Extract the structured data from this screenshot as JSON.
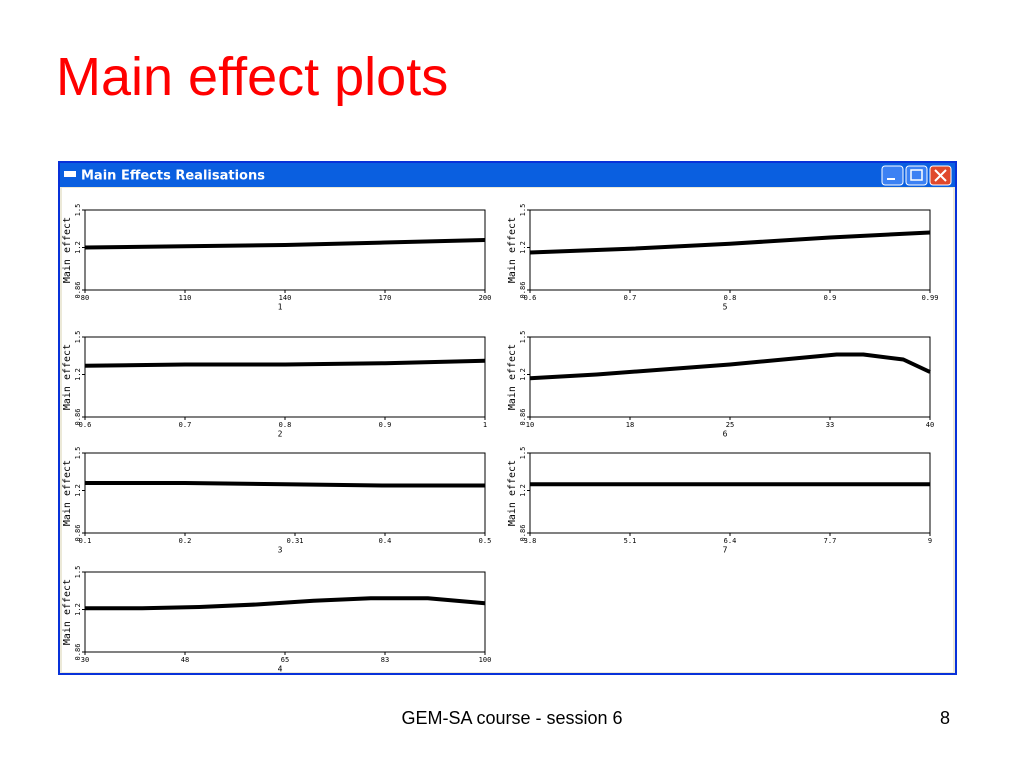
{
  "title": "Main effect plots",
  "window_title": "Main Effects Realisations",
  "footer": "GEM-SA course - session 6",
  "page_number": "8",
  "chart_data": [
    {
      "type": "line",
      "x_label": "1",
      "y_label": "Main effect",
      "color": "#000000",
      "xlim": [
        80,
        200
      ],
      "xticks": [
        80,
        110,
        140,
        170,
        200
      ],
      "ylim": [
        0.86,
        1.5
      ],
      "yticks": [
        0.86,
        1.2,
        1.5
      ],
      "x": [
        80,
        110,
        140,
        170,
        200
      ],
      "values": [
        1.2,
        1.21,
        1.22,
        1.24,
        1.26
      ]
    },
    {
      "type": "line",
      "x_label": "5",
      "y_label": "Main effect",
      "color": "#000000",
      "xlim": [
        0.6,
        0.99
      ],
      "xticks": [
        0.6,
        {
          "value": 0.6975,
          "label": "0.7"
        },
        {
          "value": 0.795,
          "label": "0.8"
        },
        {
          "value": 0.8925,
          "label": "0.9"
        },
        0.99
      ],
      "ylim": [
        0.86,
        1.5
      ],
      "yticks": [
        0.86,
        1.2,
        1.5
      ],
      "x": [
        0.6,
        0.6975,
        0.795,
        0.8925,
        0.99
      ],
      "values": [
        1.16,
        1.19,
        1.23,
        1.28,
        1.32
      ]
    },
    {
      "type": "line",
      "x_label": "2",
      "y_label": "Main effect",
      "color": "#000000",
      "xlim": [
        0.6,
        1
      ],
      "xticks": [
        0.6,
        0.7,
        0.8,
        0.9,
        1
      ],
      "ylim": [
        0.86,
        1.5
      ],
      "yticks": [
        0.86,
        1.2,
        1.5
      ],
      "x": [
        0.6,
        0.7,
        0.8,
        0.9,
        1
      ],
      "values": [
        1.27,
        1.28,
        1.28,
        1.29,
        1.31
      ]
    },
    {
      "type": "line",
      "x_label": "6",
      "y_label": "Main effect",
      "color": "#000000",
      "xlim": [
        10,
        40
      ],
      "xticks": [
        10,
        {
          "value": 17.5,
          "label": "18"
        },
        25,
        {
          "value": 32.5,
          "label": "33"
        },
        40
      ],
      "ylim": [
        0.86,
        1.5
      ],
      "yticks": [
        0.86,
        1.2,
        1.5
      ],
      "x": [
        10,
        15,
        20,
        25,
        30,
        33,
        35,
        38,
        40
      ],
      "values": [
        1.17,
        1.2,
        1.24,
        1.28,
        1.33,
        1.36,
        1.36,
        1.32,
        1.22
      ]
    },
    {
      "type": "line",
      "x_label": "3",
      "y_label": "Main effect",
      "color": "#000000",
      "xlim": [
        0.1,
        0.5
      ],
      "xticks": [
        0.1,
        0.2,
        0.31,
        0.4,
        0.5
      ],
      "ylim": [
        0.86,
        1.5
      ],
      "yticks": [
        0.86,
        1.2,
        1.5
      ],
      "x": [
        0.1,
        0.2,
        0.3,
        0.4,
        0.5
      ],
      "values": [
        1.26,
        1.26,
        1.25,
        1.24,
        1.24
      ]
    },
    {
      "type": "line",
      "x_label": "7",
      "y_label": "Main effect",
      "color": "#000000",
      "xlim": [
        3.8,
        9
      ],
      "xticks": [
        3.8,
        5.1,
        6.4,
        7.7,
        9
      ],
      "ylim": [
        0.86,
        1.5
      ],
      "yticks": [
        0.86,
        1.2,
        1.5
      ],
      "x": [
        3.8,
        5.1,
        6.4,
        7.7,
        9
      ],
      "values": [
        1.25,
        1.25,
        1.25,
        1.25,
        1.25
      ]
    },
    {
      "type": "line",
      "x_label": "4",
      "y_label": "Main effect",
      "color": "#000000",
      "xlim": [
        30,
        100
      ],
      "xticks": [
        30,
        {
          "value": 47.5,
          "label": "48"
        },
        65,
        {
          "value": 82.5,
          "label": "83"
        },
        100
      ],
      "ylim": [
        0.86,
        1.5
      ],
      "yticks": [
        0.86,
        1.2,
        1.5
      ],
      "x": [
        30,
        40,
        50,
        60,
        70,
        80,
        90,
        100
      ],
      "values": [
        1.21,
        1.21,
        1.22,
        1.24,
        1.27,
        1.29,
        1.29,
        1.25
      ]
    }
  ]
}
